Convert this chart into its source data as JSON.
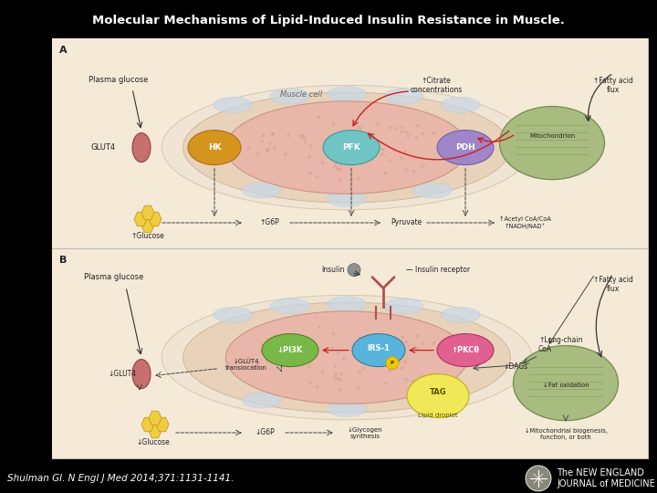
{
  "title": "Molecular Mechanisms of Lipid-Induced Insulin Resistance in Muscle.",
  "title_fontsize": 9.5,
  "title_color": "#ffffff",
  "title_fontweight": "bold",
  "background_color": "#000000",
  "citation": "Shulman GI. N Engl J Med 2014;371:1131-1141.",
  "citation_color": "#ffffff",
  "citation_fontsize": 7.5,
  "nejm_text_line1": "The NEW ENGLAND",
  "nejm_text_line2": "JOURNAL of MEDICINE",
  "nejm_color": "#ffffff",
  "nejm_fontsize": 7,
  "figure_width": 7.2,
  "figure_height": 5.4,
  "dpi": 100,
  "panel_label_fontsize": 8,
  "panel_label_color": "#222222",
  "outer_bg": "#f5ede0",
  "inner_cell_color": "#e8b4a8",
  "outer_cell_color": "#e8d8c8",
  "mito_color": "#a8bc80",
  "mito_edge": "#7a9058",
  "hk_color": "#d4941e",
  "pfk_color": "#6fc4c4",
  "pdh_color": "#9e86c8",
  "pi3k_color": "#78b848",
  "irs1_color": "#58b4dc",
  "pkc_color": "#e06090",
  "tag_color": "#f0e858",
  "glucose_color": "#f0cc40",
  "glut4_color": "#c87070",
  "white_bg": "#ffffff",
  "border_color": "#bbbbbb",
  "panel_white": "#fafafa",
  "bluish_oval": "#c8d8e8",
  "bluish_oval2": "#b8c8d8"
}
